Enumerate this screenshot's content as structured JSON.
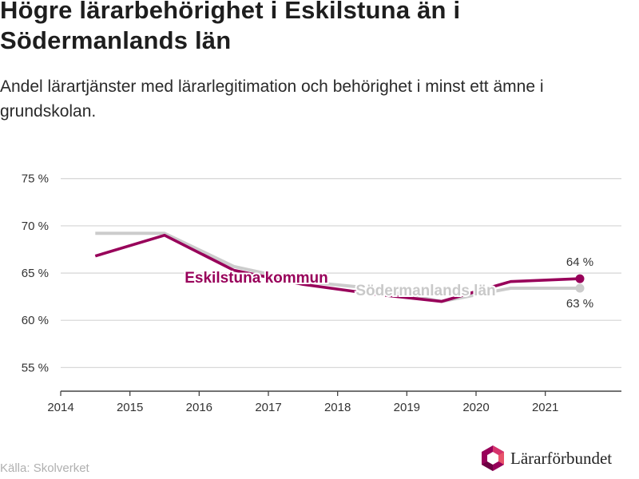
{
  "header": {
    "title": "Högre lärarbehörighet i Eskilstuna än i Södermanlands län",
    "subtitle": "Andel lärartjänster med lärarlegitimation och behörighet i minst ett ämne i grundskolan."
  },
  "footer": {
    "source": "Källa: Skolverket",
    "brand": "Lärarförbundet"
  },
  "chart_data": {
    "type": "line",
    "title": "Högre lärarbehörighet i Eskilstuna än i Södermanlands län",
    "subtitle": "Andel lärartjänster med lärarlegitimation och behörighet i minst ett ämne i grundskolan.",
    "xlabel": "",
    "ylabel": "",
    "x_ticks": [
      "2014",
      "2015",
      "2016",
      "2017",
      "2018",
      "2019",
      "2020",
      "2021"
    ],
    "y_ticks": [
      "55 %",
      "60 %",
      "65 %",
      "70 %",
      "75 %"
    ],
    "xlim": [
      2014,
      2022.1
    ],
    "ylim": [
      52.5,
      77
    ],
    "grid": "horizontal",
    "series": [
      {
        "name": "Södermanlands län",
        "color": "#cccccc",
        "x": [
          2014.5,
          2015.5,
          2016.5,
          2017.5,
          2018.5,
          2019.5,
          2020.5,
          2021.5
        ],
        "values": [
          69.2,
          69.2,
          65.7,
          64.1,
          63.4,
          62.0,
          63.4,
          63.4
        ],
        "end_label": "63 %"
      },
      {
        "name": "Eskilstuna kommun",
        "color": "#98005a",
        "x": [
          2014.5,
          2015.5,
          2016.5,
          2017.5,
          2018.5,
          2019.5,
          2020.5,
          2021.5
        ],
        "values": [
          66.8,
          69.0,
          65.3,
          63.8,
          62.8,
          62.0,
          64.1,
          64.4
        ],
        "end_label": "64 %"
      }
    ]
  }
}
